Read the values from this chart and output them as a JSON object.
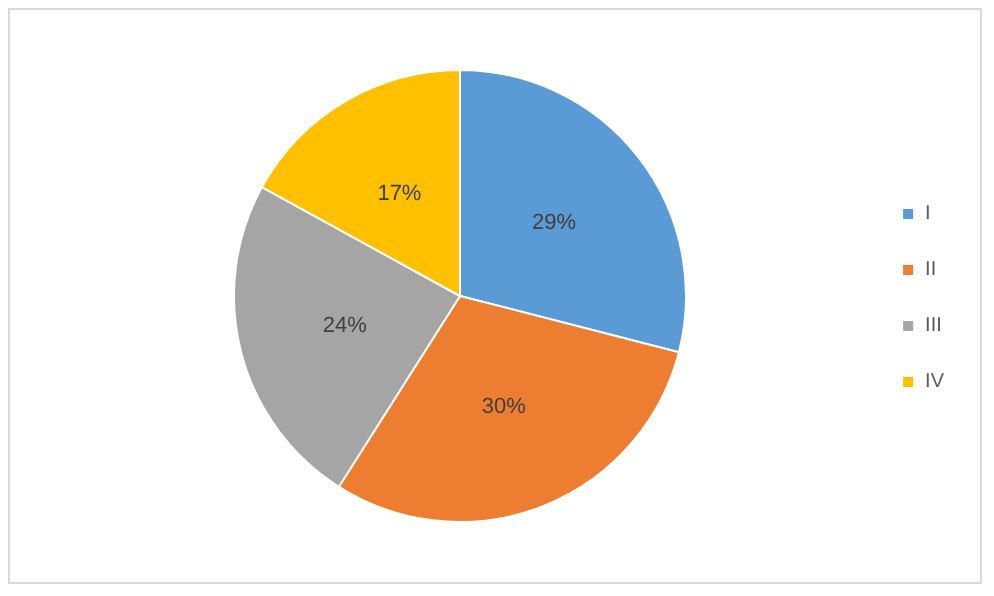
{
  "chart_data": {
    "type": "pie",
    "categories": [
      "I",
      "II",
      "III",
      "IV"
    ],
    "values": [
      29,
      30,
      24,
      17
    ],
    "colors": [
      "#5b9bd5",
      "#ed7d31",
      "#a5a5a5",
      "#ffc000"
    ],
    "value_labels": [
      "29%",
      "30%",
      "24%",
      "17%"
    ],
    "legend": "right"
  }
}
